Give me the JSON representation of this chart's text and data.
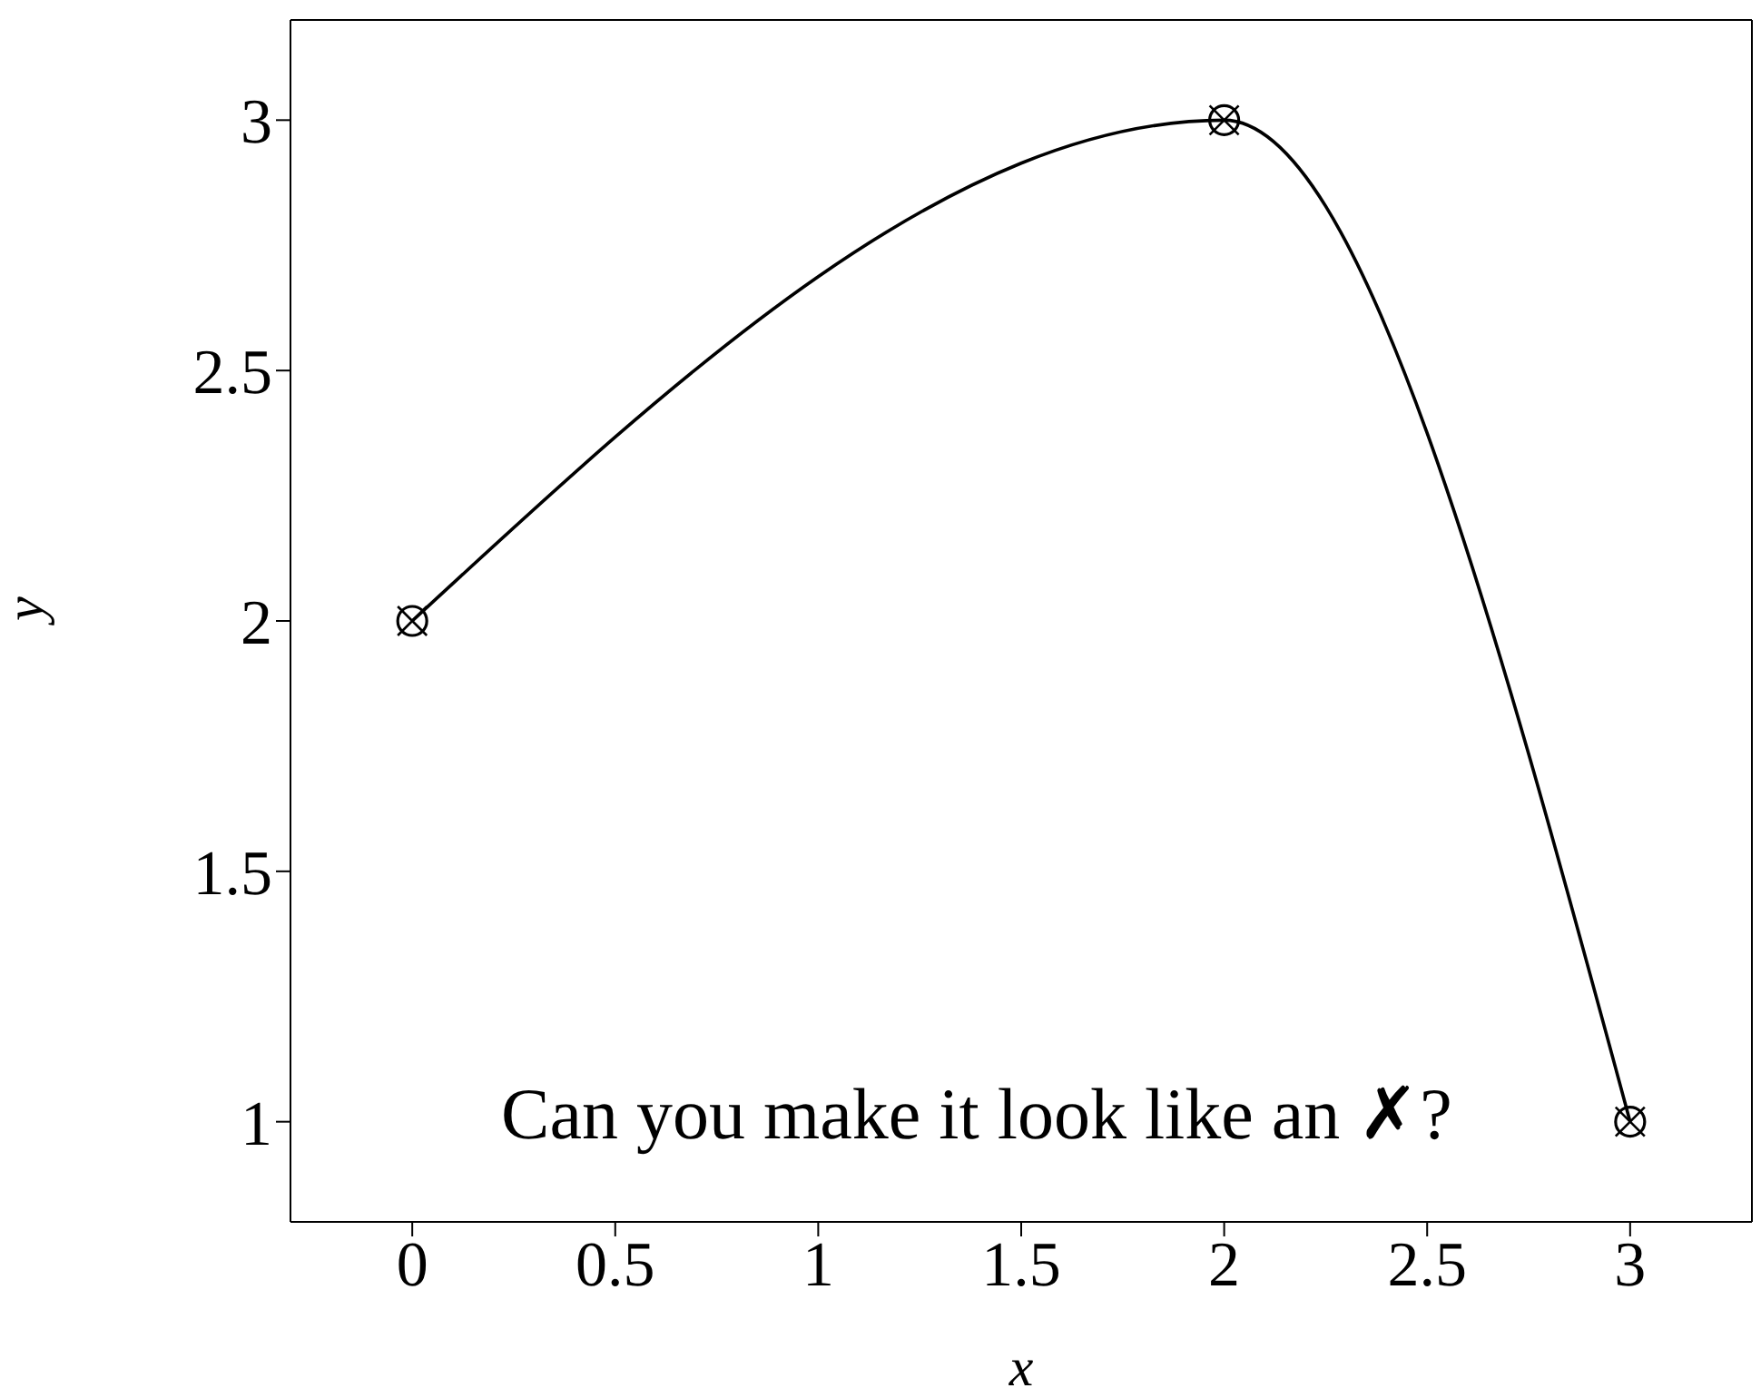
{
  "chart_data": {
    "type": "line",
    "xlabel": "x",
    "ylabel": "y",
    "x": [
      0,
      2,
      3
    ],
    "series": [
      {
        "color": "#000000",
        "values": [
          2,
          3,
          1
        ]
      }
    ],
    "xlim": [
      -0.3,
      3.3
    ],
    "ylim": [
      0.8,
      3.2
    ],
    "xticks": [
      0,
      0.5,
      1,
      1.5,
      2,
      2.5,
      3
    ],
    "yticks": [
      1,
      1.5,
      2,
      2.5,
      3
    ],
    "marker": "circle",
    "line_style": "solid",
    "annotations": [
      "Can you make it look like an ✗?"
    ]
  }
}
